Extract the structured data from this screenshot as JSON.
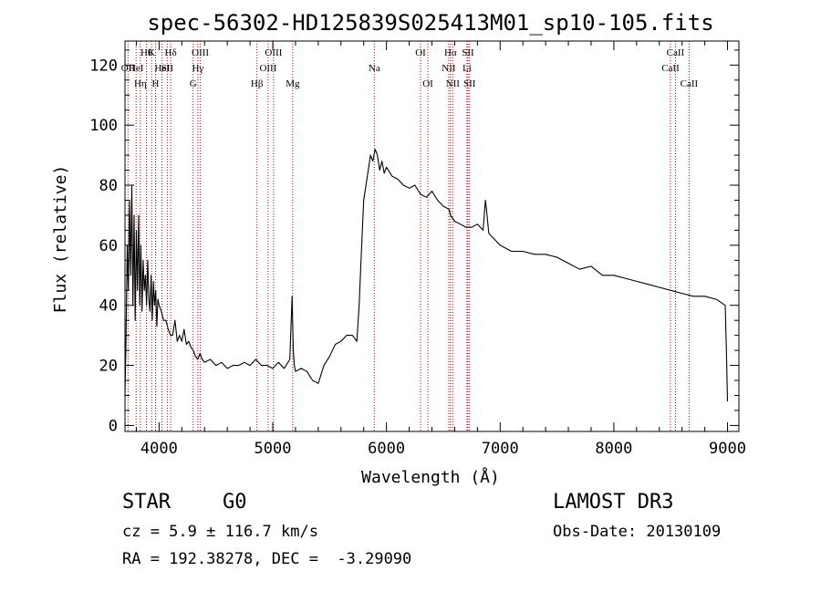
{
  "chart_data": {
    "type": "line",
    "title": "spec-56302-HD125839S025413M01_sp10-105.fits",
    "xlabel": "Wavelength (Å)",
    "ylabel": "Flux (relative)",
    "xlim": [
      3700,
      9100
    ],
    "ylim": [
      -2,
      128
    ],
    "xticks": [
      4000,
      5000,
      6000,
      7000,
      8000,
      9000
    ],
    "yticks": [
      0,
      20,
      40,
      60,
      80,
      100,
      120
    ],
    "x_minor_step": 200,
    "y_minor_step": 5,
    "grid": false,
    "colors": {
      "spectrum": "#000000",
      "line_marker": "#b40000",
      "axes": "#000000"
    },
    "series": [
      {
        "x": [
          3700,
          3710,
          3720,
          3730,
          3740,
          3750,
          3760,
          3770,
          3780,
          3790,
          3800,
          3810,
          3820,
          3830,
          3840,
          3850,
          3860,
          3870,
          3880,
          3890,
          3900,
          3910,
          3920,
          3930,
          3940,
          3950,
          3960,
          3970,
          3980,
          3990,
          4000,
          4020,
          4040,
          4060,
          4080,
          4100,
          4120,
          4140,
          4160,
          4180,
          4200,
          4220,
          4240,
          4260,
          4280,
          4300,
          4320,
          4340,
          4360,
          4380,
          4400,
          4450,
          4500,
          4550,
          4600,
          4650,
          4700,
          4750,
          4800,
          4850,
          4900,
          4950,
          5000,
          5050,
          5100,
          5150,
          5170,
          5180,
          5190,
          5200,
          5250,
          5300,
          5350,
          5400,
          5450,
          5500,
          5550,
          5600,
          5650,
          5700,
          5740,
          5760,
          5780,
          5800,
          5820,
          5840,
          5860,
          5880,
          5900,
          5920,
          5940,
          5960,
          5980,
          6000,
          6050,
          6100,
          6150,
          6200,
          6250,
          6300,
          6350,
          6400,
          6450,
          6500,
          6550,
          6563,
          6600,
          6650,
          6700,
          6750,
          6800,
          6850,
          6870,
          6880,
          6900,
          6950,
          7000,
          7100,
          7200,
          7300,
          7400,
          7500,
          7600,
          7700,
          7800,
          7900,
          8000,
          8100,
          8200,
          8300,
          8400,
          8500,
          8600,
          8700,
          8800,
          8900,
          8980,
          8990,
          9000
        ],
        "y": [
          10,
          30,
          60,
          45,
          75,
          50,
          80,
          40,
          70,
          35,
          65,
          45,
          70,
          40,
          60,
          38,
          55,
          45,
          50,
          40,
          55,
          42,
          38,
          50,
          35,
          48,
          40,
          45,
          33,
          42,
          40,
          38,
          35,
          35,
          32,
          30,
          30,
          35,
          28,
          30,
          28,
          32,
          27,
          28,
          26,
          25,
          23,
          22,
          24,
          22,
          21,
          22,
          20,
          21,
          19,
          20,
          20,
          21,
          20,
          22,
          20,
          20,
          19,
          21,
          19,
          22,
          43,
          25,
          20,
          18,
          19,
          18,
          15,
          14,
          20,
          23,
          27,
          28,
          30,
          30,
          28,
          40,
          58,
          75,
          80,
          85,
          90,
          88,
          92,
          90,
          85,
          88,
          84,
          86,
          83,
          82,
          80,
          79,
          80,
          77,
          76,
          78,
          75,
          73,
          72,
          70,
          68,
          67,
          66,
          66,
          67,
          65,
          75,
          72,
          64,
          62,
          60,
          58,
          58,
          57,
          57,
          56,
          54,
          52,
          53,
          50,
          50,
          49,
          48,
          47,
          46,
          45,
          44,
          43,
          43,
          42,
          40,
          25,
          8
        ]
      }
    ],
    "line_markers": [
      {
        "x": 3727,
        "label": "OII",
        "row": 2
      },
      {
        "x": 3798,
        "label": "HeI",
        "row": 2
      },
      {
        "x": 3835,
        "label": "Hη",
        "row": 3
      },
      {
        "x": 3889,
        "label": "Hθ",
        "row": 1
      },
      {
        "x": 3934,
        "label": "K",
        "row": 1
      },
      {
        "x": 3969,
        "label": "H",
        "row": 3
      },
      {
        "x": 4026,
        "label": "HeI",
        "row": 2
      },
      {
        "x": 4072,
        "label": "SII",
        "row": 2
      },
      {
        "x": 4102,
        "label": "Hδ",
        "row": 1
      },
      {
        "x": 4300,
        "label": "G",
        "row": 3
      },
      {
        "x": 4341,
        "label": "Hγ",
        "row": 2
      },
      {
        "x": 4363,
        "label": "OIII",
        "row": 1
      },
      {
        "x": 4861,
        "label": "Hβ",
        "row": 3
      },
      {
        "x": 4959,
        "label": "OIII",
        "row": 2
      },
      {
        "x": 5007,
        "label": "OIII",
        "row": 1
      },
      {
        "x": 5175,
        "label": "Mg",
        "row": 3
      },
      {
        "x": 5893,
        "label": "Na",
        "row": 2
      },
      {
        "x": 6300,
        "label": "OI",
        "row": 1
      },
      {
        "x": 6364,
        "label": "OI",
        "row": 3
      },
      {
        "x": 6548,
        "label": "NII",
        "row": 2
      },
      {
        "x": 6563,
        "label": "Hα",
        "row": 1
      },
      {
        "x": 6583,
        "label": "NII",
        "row": 3
      },
      {
        "x": 6708,
        "label": "Li",
        "row": 2
      },
      {
        "x": 6717,
        "label": "SII",
        "row": 1
      },
      {
        "x": 6731,
        "label": "SII",
        "row": 3
      },
      {
        "x": 8498,
        "label": "CaII",
        "row": 2
      },
      {
        "x": 8542,
        "label": "CaII",
        "row": 1
      },
      {
        "x": 8662,
        "label": "CaII",
        "row": 3
      }
    ]
  },
  "info": {
    "class": "STAR",
    "subclass": "G0",
    "cz": "cz = 5.9 ± 116.7 km/s",
    "radec": "RA = 192.38278, DEC =  -3.29090",
    "survey": "LAMOST DR3",
    "obs_date": "Obs-Date: 20130109"
  }
}
